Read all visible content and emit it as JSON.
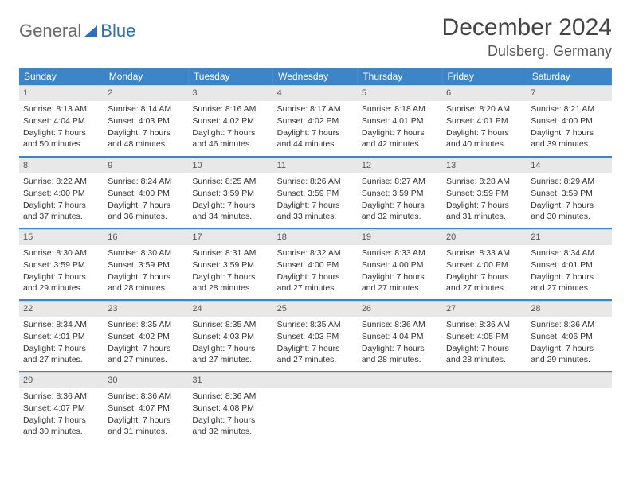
{
  "logo": {
    "text1": "General",
    "text2": "Blue"
  },
  "title": "December 2024",
  "location": "Dulsberg, Germany",
  "colors": {
    "header_bg": "#3d85c6",
    "header_text": "#ffffff",
    "row_divider": "#3d85c6",
    "daynum_bg": "#e8e8e8",
    "logo_gray": "#6b6b6b",
    "logo_blue": "#2e6fb5"
  },
  "weekdays": [
    "Sunday",
    "Monday",
    "Tuesday",
    "Wednesday",
    "Thursday",
    "Friday",
    "Saturday"
  ],
  "days": [
    {
      "n": 1,
      "sunrise": "8:13 AM",
      "sunset": "4:04 PM",
      "daylight": "7 hours and 50 minutes."
    },
    {
      "n": 2,
      "sunrise": "8:14 AM",
      "sunset": "4:03 PM",
      "daylight": "7 hours and 48 minutes."
    },
    {
      "n": 3,
      "sunrise": "8:16 AM",
      "sunset": "4:02 PM",
      "daylight": "7 hours and 46 minutes."
    },
    {
      "n": 4,
      "sunrise": "8:17 AM",
      "sunset": "4:02 PM",
      "daylight": "7 hours and 44 minutes."
    },
    {
      "n": 5,
      "sunrise": "8:18 AM",
      "sunset": "4:01 PM",
      "daylight": "7 hours and 42 minutes."
    },
    {
      "n": 6,
      "sunrise": "8:20 AM",
      "sunset": "4:01 PM",
      "daylight": "7 hours and 40 minutes."
    },
    {
      "n": 7,
      "sunrise": "8:21 AM",
      "sunset": "4:00 PM",
      "daylight": "7 hours and 39 minutes."
    },
    {
      "n": 8,
      "sunrise": "8:22 AM",
      "sunset": "4:00 PM",
      "daylight": "7 hours and 37 minutes."
    },
    {
      "n": 9,
      "sunrise": "8:24 AM",
      "sunset": "4:00 PM",
      "daylight": "7 hours and 36 minutes."
    },
    {
      "n": 10,
      "sunrise": "8:25 AM",
      "sunset": "3:59 PM",
      "daylight": "7 hours and 34 minutes."
    },
    {
      "n": 11,
      "sunrise": "8:26 AM",
      "sunset": "3:59 PM",
      "daylight": "7 hours and 33 minutes."
    },
    {
      "n": 12,
      "sunrise": "8:27 AM",
      "sunset": "3:59 PM",
      "daylight": "7 hours and 32 minutes."
    },
    {
      "n": 13,
      "sunrise": "8:28 AM",
      "sunset": "3:59 PM",
      "daylight": "7 hours and 31 minutes."
    },
    {
      "n": 14,
      "sunrise": "8:29 AM",
      "sunset": "3:59 PM",
      "daylight": "7 hours and 30 minutes."
    },
    {
      "n": 15,
      "sunrise": "8:30 AM",
      "sunset": "3:59 PM",
      "daylight": "7 hours and 29 minutes."
    },
    {
      "n": 16,
      "sunrise": "8:30 AM",
      "sunset": "3:59 PM",
      "daylight": "7 hours and 28 minutes."
    },
    {
      "n": 17,
      "sunrise": "8:31 AM",
      "sunset": "3:59 PM",
      "daylight": "7 hours and 28 minutes."
    },
    {
      "n": 18,
      "sunrise": "8:32 AM",
      "sunset": "4:00 PM",
      "daylight": "7 hours and 27 minutes."
    },
    {
      "n": 19,
      "sunrise": "8:33 AM",
      "sunset": "4:00 PM",
      "daylight": "7 hours and 27 minutes."
    },
    {
      "n": 20,
      "sunrise": "8:33 AM",
      "sunset": "4:00 PM",
      "daylight": "7 hours and 27 minutes."
    },
    {
      "n": 21,
      "sunrise": "8:34 AM",
      "sunset": "4:01 PM",
      "daylight": "7 hours and 27 minutes."
    },
    {
      "n": 22,
      "sunrise": "8:34 AM",
      "sunset": "4:01 PM",
      "daylight": "7 hours and 27 minutes."
    },
    {
      "n": 23,
      "sunrise": "8:35 AM",
      "sunset": "4:02 PM",
      "daylight": "7 hours and 27 minutes."
    },
    {
      "n": 24,
      "sunrise": "8:35 AM",
      "sunset": "4:03 PM",
      "daylight": "7 hours and 27 minutes."
    },
    {
      "n": 25,
      "sunrise": "8:35 AM",
      "sunset": "4:03 PM",
      "daylight": "7 hours and 27 minutes."
    },
    {
      "n": 26,
      "sunrise": "8:36 AM",
      "sunset": "4:04 PM",
      "daylight": "7 hours and 28 minutes."
    },
    {
      "n": 27,
      "sunrise": "8:36 AM",
      "sunset": "4:05 PM",
      "daylight": "7 hours and 28 minutes."
    },
    {
      "n": 28,
      "sunrise": "8:36 AM",
      "sunset": "4:06 PM",
      "daylight": "7 hours and 29 minutes."
    },
    {
      "n": 29,
      "sunrise": "8:36 AM",
      "sunset": "4:07 PM",
      "daylight": "7 hours and 30 minutes."
    },
    {
      "n": 30,
      "sunrise": "8:36 AM",
      "sunset": "4:07 PM",
      "daylight": "7 hours and 31 minutes."
    },
    {
      "n": 31,
      "sunrise": "8:36 AM",
      "sunset": "4:08 PM",
      "daylight": "7 hours and 32 minutes."
    }
  ],
  "labels": {
    "sunrise": "Sunrise:",
    "sunset": "Sunset:",
    "daylight": "Daylight:"
  },
  "grid": {
    "start_weekday": 0,
    "rows": 5,
    "cols": 7
  }
}
